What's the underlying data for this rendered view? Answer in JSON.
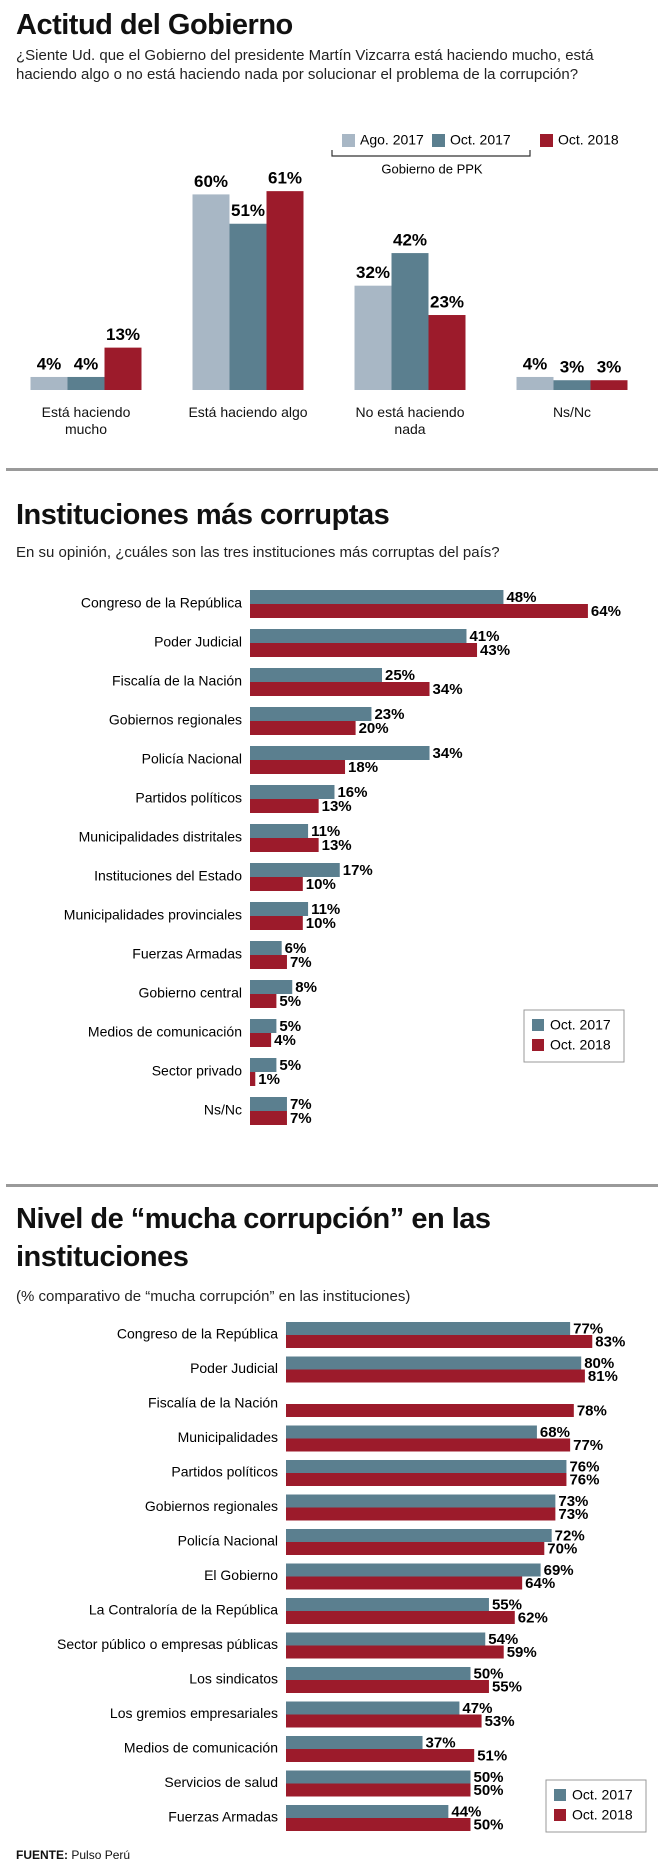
{
  "chart_data": [
    {
      "type": "bar",
      "title": "Actitud del Gobierno",
      "subtitle": "¿Siente Ud. que el Gobierno del presidente Martín Vizcarra está haciendo mucho, está haciendo algo o no está haciendo nada por solucionar el problema de la corrupción?",
      "annotation": "Gobierno de PPK",
      "categories": [
        "Está haciendo mucho",
        "Está haciendo algo",
        "No está haciendo nada",
        "Ns/Nc"
      ],
      "series": [
        {
          "name": "Ago. 2017",
          "color": "#a8b7c5",
          "values": [
            4,
            60,
            32,
            4
          ],
          "value_labels": [
            "4%",
            "60%",
            "32%",
            "4%"
          ]
        },
        {
          "name": "Oct. 2017",
          "color": "#5b7f8f",
          "values": [
            4,
            51,
            42,
            3
          ],
          "value_labels": [
            "4%",
            "51%",
            "42%",
            "3%"
          ]
        },
        {
          "name": "Oct. 2018",
          "color": "#9c1b2b",
          "values": [
            13,
            61,
            23,
            3
          ],
          "value_labels": [
            "13%",
            "61%",
            "23%",
            "3%"
          ]
        }
      ]
    },
    {
      "type": "barh",
      "title": "Instituciones más corruptas",
      "subtitle": "En su opinión, ¿cuáles son las tres instituciones más corruptas del país?",
      "legend": "lower right",
      "categories": [
        "Congreso de la República",
        "Poder Judicial",
        "Fiscalía de la Nación",
        "Gobiernos regionales",
        "Policía Nacional",
        "Partidos políticos",
        "Municipalidades distritales",
        "Instituciones del Estado",
        "Municipalidades provinciales",
        "Fuerzas Armadas",
        "Gobierno central",
        "Medios de comunicación",
        "Sector privado",
        "Ns/Nc"
      ],
      "series": [
        {
          "name": "Oct. 2017",
          "color": "#5b7f8f",
          "values": [
            48,
            41,
            25,
            23,
            34,
            16,
            11,
            17,
            11,
            6,
            8,
            5,
            5,
            7
          ],
          "value_labels": [
            "48%",
            "41%",
            "25%",
            "23%",
            "34%",
            "16%",
            "11%",
            "17%",
            "11%",
            "6%",
            "8%",
            "5%",
            "5%",
            "7%"
          ]
        },
        {
          "name": "Oct. 2018",
          "color": "#9c1b2b",
          "values": [
            64,
            43,
            34,
            20,
            18,
            13,
            13,
            10,
            10,
            7,
            5,
            4,
            1,
            7
          ],
          "value_labels": [
            "64%",
            "43%",
            "34%",
            "20%",
            "18%",
            "13%",
            "13%",
            "10%",
            "10%",
            "7%",
            "5%",
            "4%",
            "1%",
            "7%"
          ]
        }
      ]
    },
    {
      "type": "barh",
      "title": "Nivel de “mucha corrupción” en las instituciones",
      "subtitle": "(% comparativo de “mucha corrupción” en las instituciones)",
      "legend": "lower right",
      "categories": [
        "Congreso de la República",
        "Poder Judicial",
        "Fiscalía de la Nación",
        "Municipalidades",
        "Partidos políticos",
        "Gobiernos regionales",
        "Policía Nacional",
        "El Gobierno",
        "La Contraloría de la República",
        "Sector público o empresas públicas",
        "Los sindicatos",
        "Los gremios empresariales",
        "Medios de comunicación",
        "Servicios de salud",
        "Fuerzas Armadas"
      ],
      "series": [
        {
          "name": "Oct. 2017",
          "color": "#5b7f8f",
          "values": [
            77,
            80,
            null,
            68,
            76,
            73,
            72,
            69,
            55,
            54,
            50,
            47,
            37,
            50,
            44
          ],
          "value_labels": [
            "77%",
            "80%",
            null,
            "68%",
            "76%",
            "73%",
            "72%",
            "69%",
            "55%",
            "54%",
            "50%",
            "47%",
            "37%",
            "50%",
            "44%"
          ]
        },
        {
          "name": "Oct. 2018",
          "color": "#9c1b2b",
          "values": [
            83,
            81,
            78,
            77,
            76,
            73,
            70,
            64,
            62,
            59,
            55,
            53,
            51,
            50,
            50
          ],
          "value_labels": [
            "83%",
            "81%",
            "78%",
            "77%",
            "76%",
            "73%",
            "70%",
            "64%",
            "62%",
            "59%",
            "55%",
            "53%",
            "51%",
            "50%",
            "50%"
          ]
        }
      ]
    }
  ],
  "source_label": "FUENTE:",
  "source": "Pulso Perú"
}
